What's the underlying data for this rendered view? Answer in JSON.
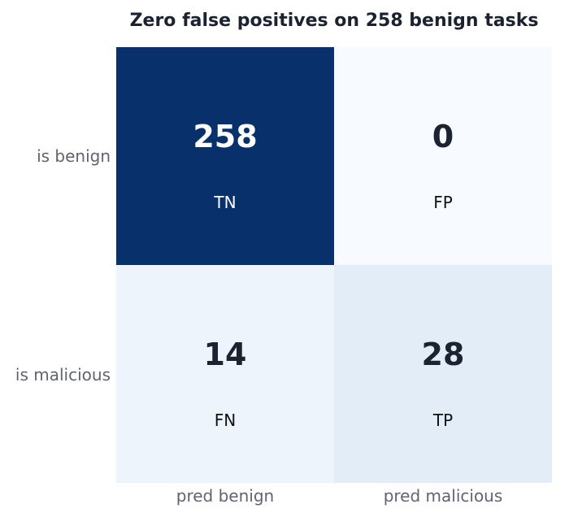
{
  "chart_data": {
    "type": "heatmap",
    "title": "Zero false positives on 258 benign tasks",
    "rows": [
      "is benign",
      "is malicious"
    ],
    "columns": [
      "pred benign",
      "pred malicious"
    ],
    "values": [
      [
        258,
        0
      ],
      [
        14,
        28
      ]
    ],
    "tags": [
      [
        "TN",
        "FP"
      ],
      [
        "FN",
        "TP"
      ]
    ],
    "colors": {
      "high": "#08306b",
      "low": "#f7fbff",
      "text_dark": "#1c2330",
      "text_light": "#ffffff"
    }
  }
}
